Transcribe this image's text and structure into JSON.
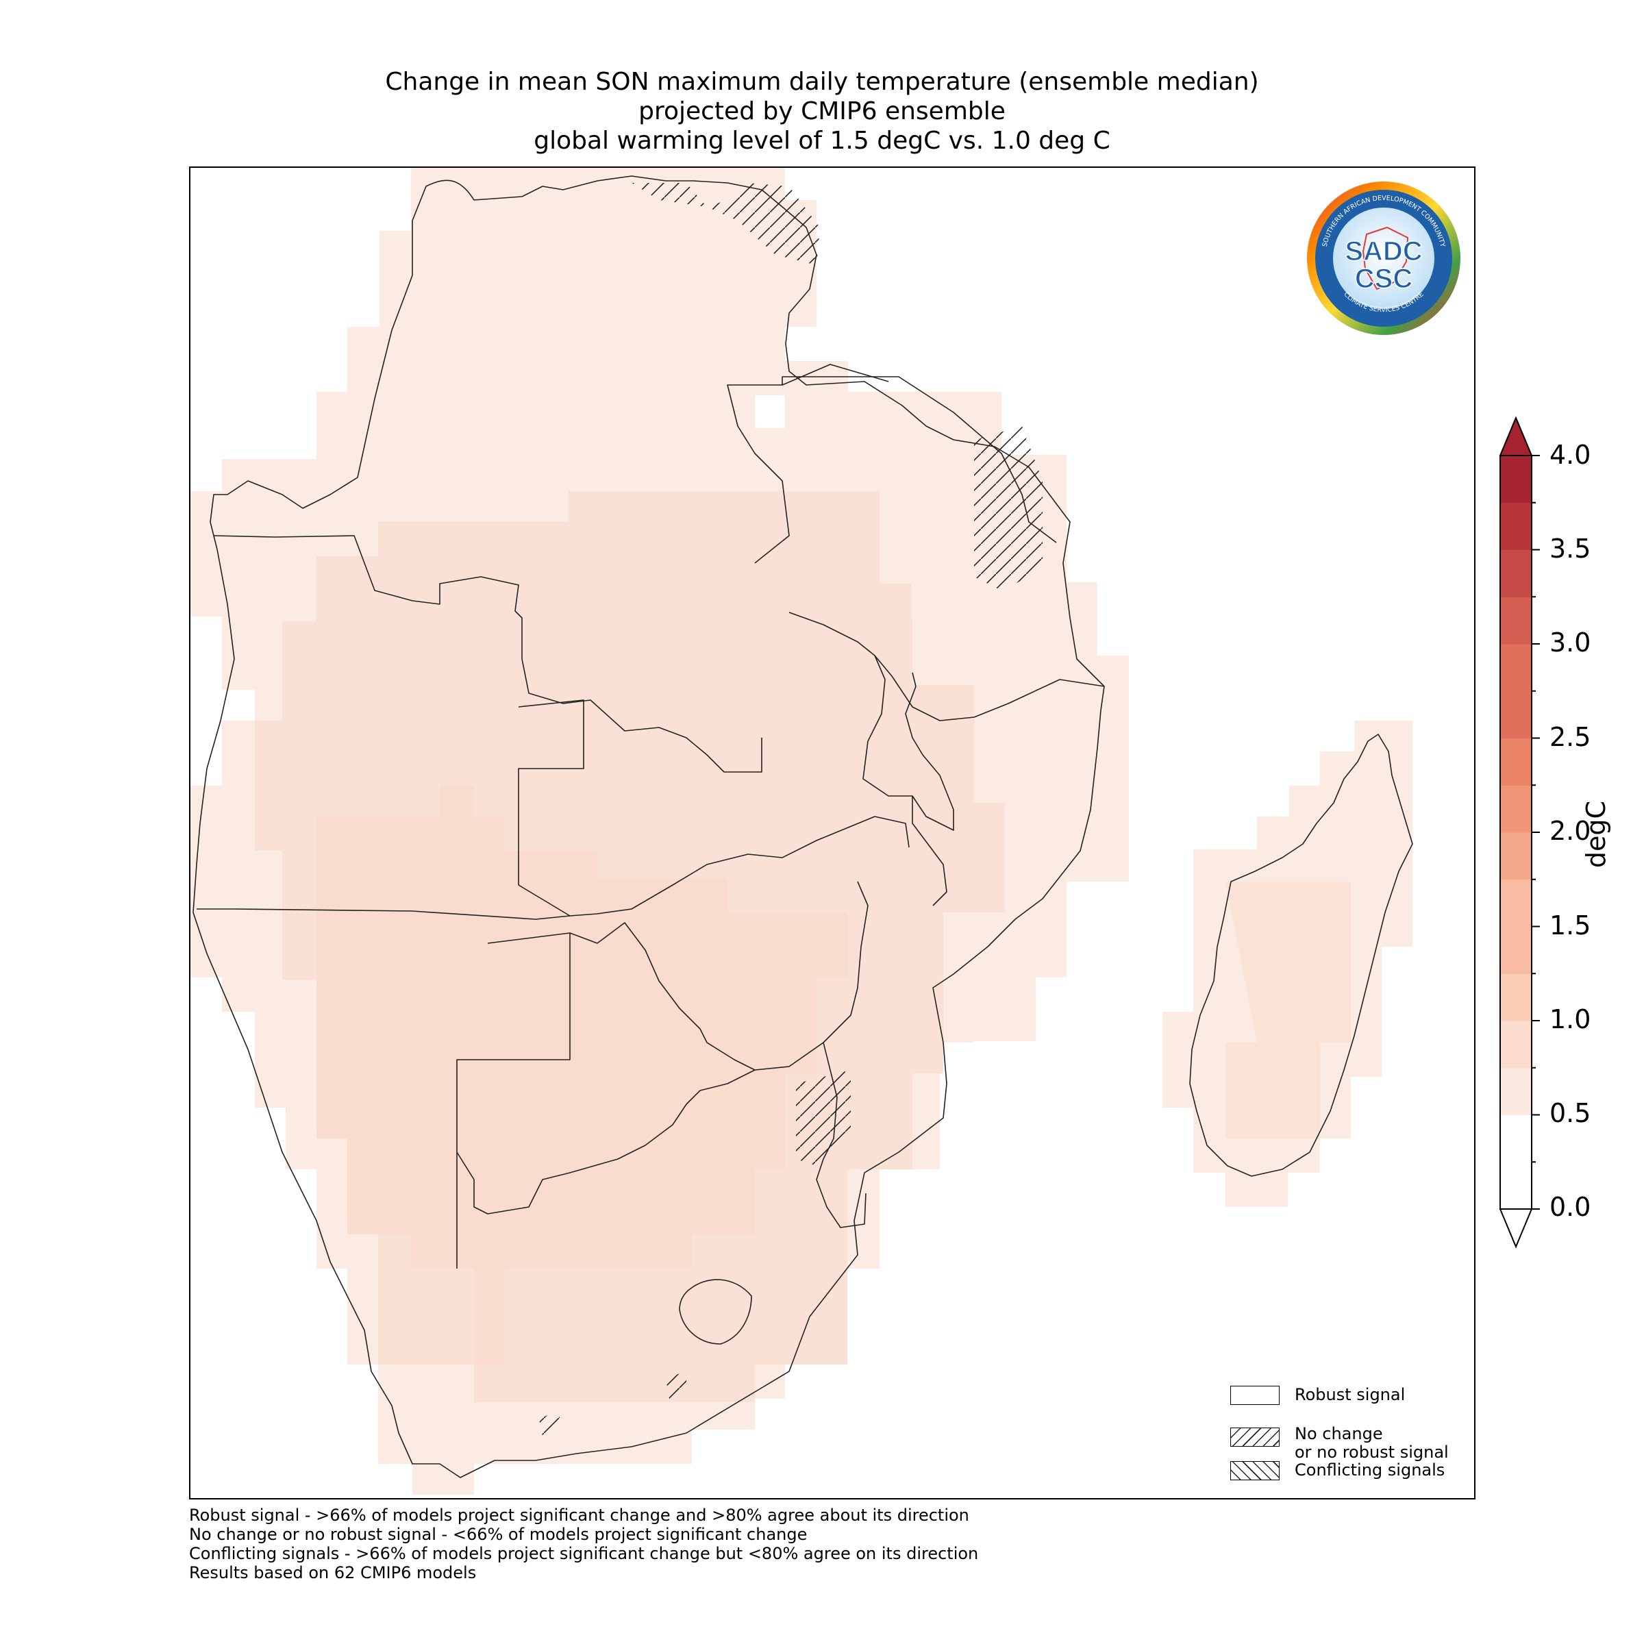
{
  "title": {
    "line1": "Change in mean SON maximum daily temperature (ensemble median)",
    "line2": "projected by CMIP6 ensemble",
    "line3": "global warming level of 1.5 degC vs. 1.0 deg C"
  },
  "colorbar": {
    "unit": "degC",
    "ticks": [
      "4.0",
      "3.5",
      "3.0",
      "2.5",
      "2.0",
      "1.5",
      "1.0",
      "0.5",
      "0.0"
    ],
    "colors": [
      "#ffffff",
      "#fbe9e1",
      "#fcdccc",
      "#fbcdb7",
      "#f8bca2",
      "#f5a98a",
      "#f09677",
      "#ea8266",
      "#e06f5b",
      "#d35d51",
      "#c64a45",
      "#b8363b",
      "#a52230"
    ],
    "range": [
      0,
      4
    ]
  },
  "legend": {
    "robust": "Robust signal",
    "no_change_line1": "No change",
    "no_change_line2": "or no robust signal",
    "conflicting": "Conflicting signals"
  },
  "footnotes": [
    "Robust signal - >66% of models project significant change and >80% agree about its direction",
    "No change or no robust signal - <66% of models project significant change",
    "Conflicting signals - >66% of models project significant change but <80% agree on its direction",
    "Results based on 62 CMIP6 models"
  ],
  "logo": {
    "top_text": "SOUTHERN AFRICAN DEVELOPMENT COMMUNITY",
    "bottom_text": "CLIMATE SERVICES CENTRE",
    "upper": "SADC",
    "lower": "CSC"
  },
  "map": {
    "field_colors": {
      "low": "#fbebe2",
      "mid": "#fae0d4",
      "high": "#f9dccc"
    },
    "median_change_range_degC": [
      0.5,
      1.0
    ]
  }
}
